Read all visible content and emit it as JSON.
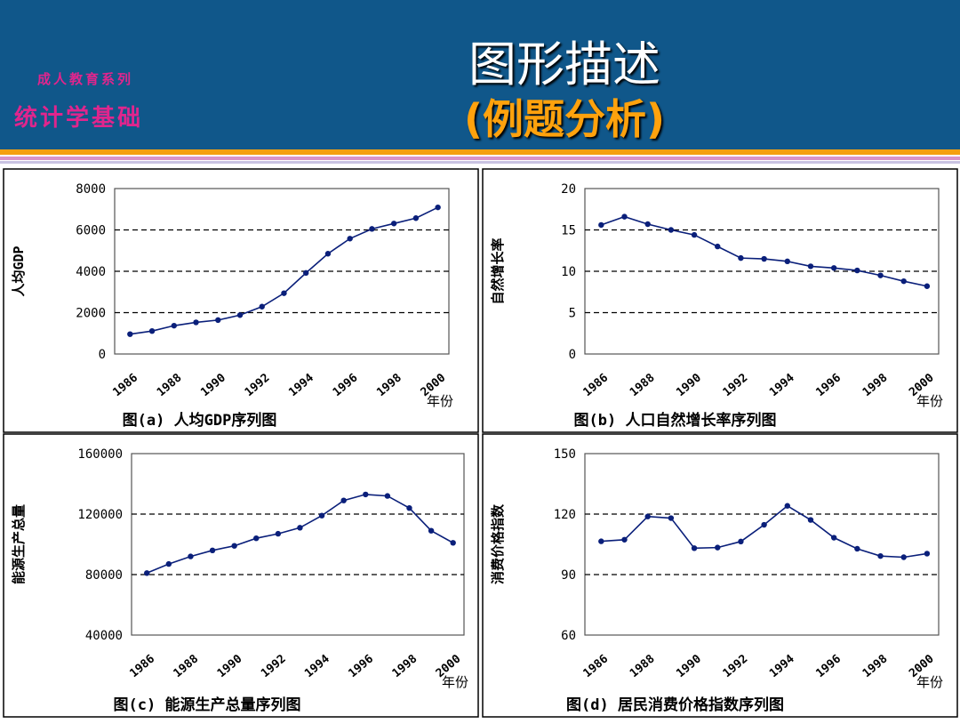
{
  "header": {
    "series": "成人教育系列",
    "course": "统计学基础",
    "title": "图形描述",
    "subtitle": "(例题分析)"
  },
  "colors": {
    "header_bg": "#10578a",
    "accent_orange": "#f5a00f",
    "accent_pink": "#e0258d",
    "series_line": "#0a1f7a"
  },
  "chart_data": [
    {
      "type": "line",
      "title": "图(a)  人均GDP序列图",
      "ylabel": "人均GDP",
      "xlabel": "年份",
      "ylim": [
        0,
        8000
      ],
      "yticks": [
        "0",
        "2000",
        "4000",
        "6000",
        "8000"
      ],
      "xticks": [
        "1986",
        "1988",
        "1990",
        "1992",
        "1994",
        "1996",
        "1998",
        "2000"
      ],
      "x": [
        1986,
        1987,
        1988,
        1989,
        1990,
        1991,
        1992,
        1993,
        1994,
        1995,
        1996,
        1997,
        1998,
        1999,
        2000
      ],
      "values": [
        960,
        1110,
        1370,
        1530,
        1640,
        1880,
        2290,
        2940,
        3920,
        4850,
        5580,
        6050,
        6310,
        6570,
        7090
      ],
      "grid": "dashed"
    },
    {
      "type": "line",
      "title": "图(b)  人口自然增长率序列图",
      "ylabel": "自然增长率",
      "xlabel": "年份",
      "ylim": [
        0,
        20
      ],
      "yticks": [
        "0",
        "5",
        "10",
        "15",
        "20"
      ],
      "xticks": [
        "1986",
        "1988",
        "1990",
        "1992",
        "1994",
        "1996",
        "1998",
        "2000"
      ],
      "x": [
        1986,
        1987,
        1988,
        1989,
        1990,
        1991,
        1992,
        1993,
        1994,
        1995,
        1996,
        1997,
        1998,
        1999,
        2000
      ],
      "values": [
        15.6,
        16.6,
        15.7,
        15.0,
        14.4,
        13.0,
        11.6,
        11.5,
        11.2,
        10.6,
        10.4,
        10.1,
        9.5,
        8.8,
        8.2
      ],
      "grid": "dashed"
    },
    {
      "type": "line",
      "title": "图(c)  能源生产总量序列图",
      "ylabel": "能源生产总量",
      "xlabel": "年份",
      "ylim": [
        40000,
        160000
      ],
      "yticks": [
        "40000",
        "80000",
        "120000",
        "160000"
      ],
      "xticks": [
        "1986",
        "1988",
        "1990",
        "1992",
        "1994",
        "1996",
        "1998",
        "2000"
      ],
      "x": [
        1986,
        1987,
        1988,
        1989,
        1990,
        1991,
        1992,
        1993,
        1994,
        1995,
        1996,
        1997,
        1998,
        1999,
        2000
      ],
      "values": [
        81000,
        87000,
        92000,
        96000,
        99000,
        104000,
        107000,
        111000,
        119000,
        129000,
        133000,
        132000,
        124000,
        109000,
        101000
      ],
      "grid": "dashed"
    },
    {
      "type": "line",
      "title": "图(d)  居民消费价格指数序列图",
      "ylabel": "消费价格指数",
      "xlabel": "年份",
      "ylim": [
        60,
        150
      ],
      "yticks": [
        "60",
        "90",
        "120",
        "150"
      ],
      "xticks": [
        "1986",
        "1988",
        "1990",
        "1992",
        "1994",
        "1996",
        "1998",
        "2000"
      ],
      "x": [
        1986,
        1987,
        1988,
        1989,
        1990,
        1991,
        1992,
        1993,
        1994,
        1995,
        1996,
        1997,
        1998,
        1999,
        2000
      ],
      "values": [
        106.5,
        107.3,
        118.8,
        118.0,
        103.1,
        103.4,
        106.4,
        114.7,
        124.1,
        117.1,
        108.3,
        102.8,
        99.2,
        98.6,
        100.4
      ],
      "grid": "dashed"
    }
  ]
}
